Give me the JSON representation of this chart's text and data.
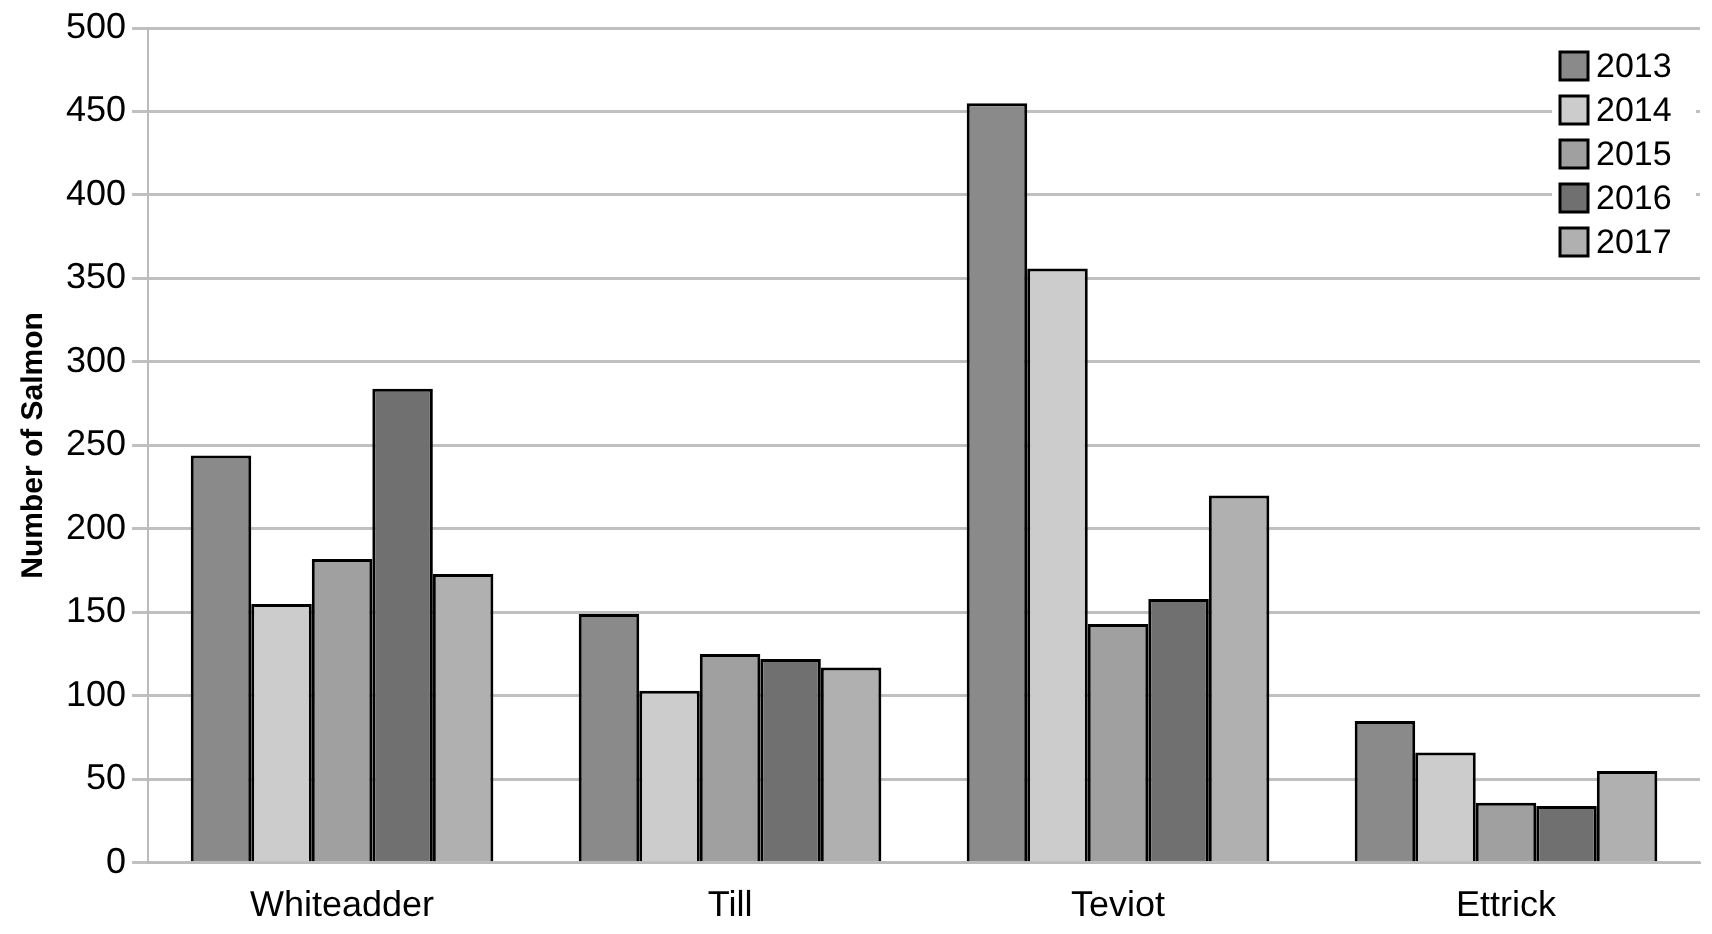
{
  "chart_data": {
    "type": "bar",
    "ylabel": "Number of Salmon",
    "categories": [
      "Whiteadder",
      "Till",
      "Teviot",
      "Ettrick"
    ],
    "series": [
      {
        "name": "2013",
        "color": "#8a8a8a",
        "values": [
          244,
          149,
          455,
          85
        ]
      },
      {
        "name": "2014",
        "color": "#cccccc",
        "values": [
          155,
          103,
          356,
          66
        ]
      },
      {
        "name": "2015",
        "color": "#a0a0a0",
        "values": [
          182,
          125,
          143,
          36
        ]
      },
      {
        "name": "2016",
        "color": "#707070",
        "values": [
          284,
          122,
          158,
          34
        ]
      },
      {
        "name": "2017",
        "color": "#b0b0b0",
        "values": [
          173,
          117,
          220,
          55
        ]
      }
    ],
    "ylim": [
      0,
      500
    ],
    "yticks": [
      0,
      50,
      100,
      150,
      200,
      250,
      300,
      350,
      400,
      450,
      500
    ],
    "grid": "y",
    "legend": "top right"
  }
}
